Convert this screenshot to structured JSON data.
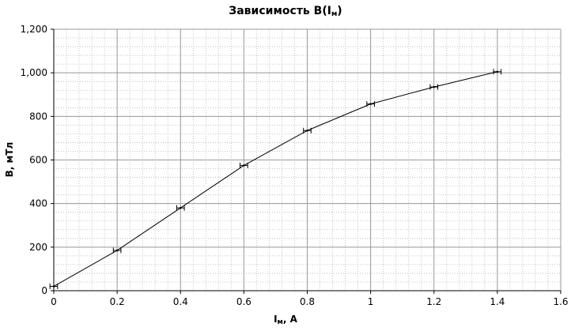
{
  "chart_data": {
    "type": "line",
    "title": {
      "prefix": "Зависимость B(I",
      "sub": "м",
      "suffix": ")"
    },
    "xlabel": {
      "main": "I",
      "sub": "м",
      "suffix": ", А"
    },
    "ylabel": "B, мТл",
    "xlim": [
      0,
      1.6
    ],
    "ylim": [
      0,
      1200
    ],
    "x_ticks": [
      0,
      0.2,
      0.4,
      0.6,
      0.8,
      1,
      1.2,
      1.4,
      1.6
    ],
    "x_tick_labels": [
      "0",
      "0.2",
      "0.4",
      "0.6",
      "0.8",
      "1",
      "1.2",
      "1.4",
      "1.6"
    ],
    "y_ticks": [
      0,
      200,
      400,
      600,
      800,
      1000,
      1200
    ],
    "y_tick_labels": [
      "0",
      "200",
      "400",
      "600",
      "800",
      "1,000",
      "1,200"
    ],
    "grid": true,
    "minor_grid": true,
    "series": [
      {
        "x": [
          0.0,
          0.2,
          0.4,
          0.6,
          0.8,
          1.0,
          1.2,
          1.4
        ],
        "y": [
          20,
          185,
          380,
          575,
          735,
          857,
          935,
          1005
        ],
        "x_error": 0.012,
        "color": "#000000"
      }
    ],
    "colors": {
      "major_grid": "#9a9a9a",
      "minor_grid": "#b4b4b4",
      "line": "#000000"
    }
  }
}
